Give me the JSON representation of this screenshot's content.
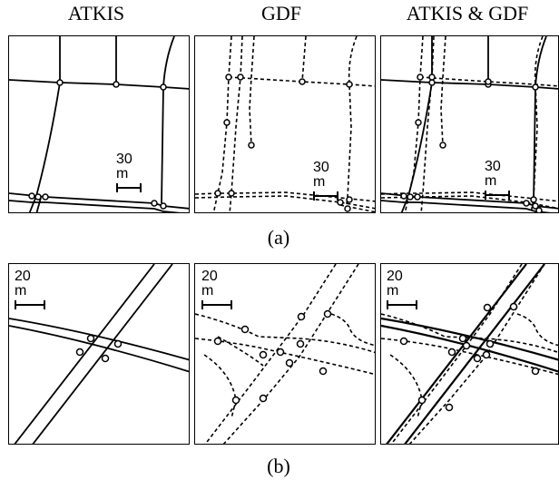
{
  "column_titles": [
    "ATKIS",
    "GDF",
    "ATKIS & GDF"
  ],
  "captions": {
    "a": "(a)",
    "b": "(b)"
  },
  "scale_labels": {
    "a": "30 m",
    "b": "20 m"
  },
  "line_style": {
    "ATKIS": "solid",
    "GDF": "dashed"
  },
  "colors": {
    "line": "#000000",
    "background": "#ffffff"
  }
}
